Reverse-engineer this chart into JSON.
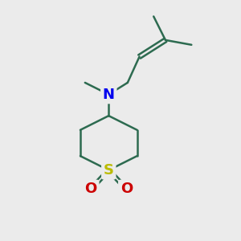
{
  "bg_color": "#ebebeb",
  "bond_color": "#2d6b50",
  "N_color": "#0000ee",
  "S_color": "#bbbb00",
  "O_color": "#cc0000",
  "bond_width": 1.8,
  "font_size_atom": 13,
  "fig_w": 3.0,
  "fig_h": 3.0,
  "dpi": 100,
  "xlim": [
    0,
    10
  ],
  "ylim": [
    0,
    10
  ]
}
